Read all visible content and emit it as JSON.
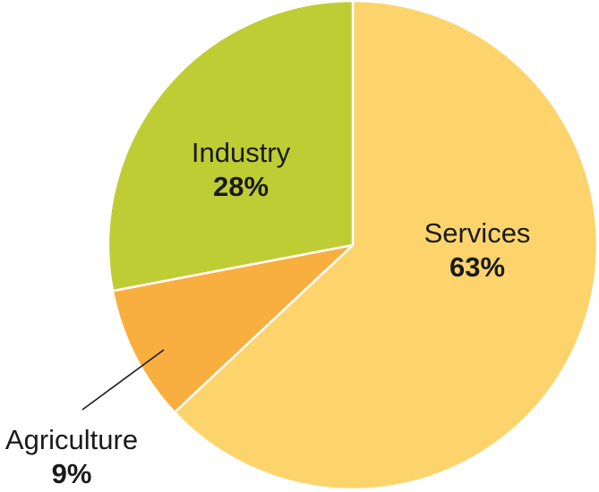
{
  "chart_data": {
    "type": "pie",
    "slices": [
      {
        "label": "Services",
        "value": 63,
        "value_label": "63%",
        "color": "#FDD46C"
      },
      {
        "label": "Agriculture",
        "value": 9,
        "value_label": "9%",
        "color": "#F9AF40"
      },
      {
        "label": "Industry",
        "value": 28,
        "value_label": "28%",
        "color": "#BFCD35"
      }
    ],
    "start_angle_deg": 0,
    "direction": "clockwise",
    "title": "",
    "legend": "none",
    "label_style": "inside; Agriculture outside with leader line"
  }
}
